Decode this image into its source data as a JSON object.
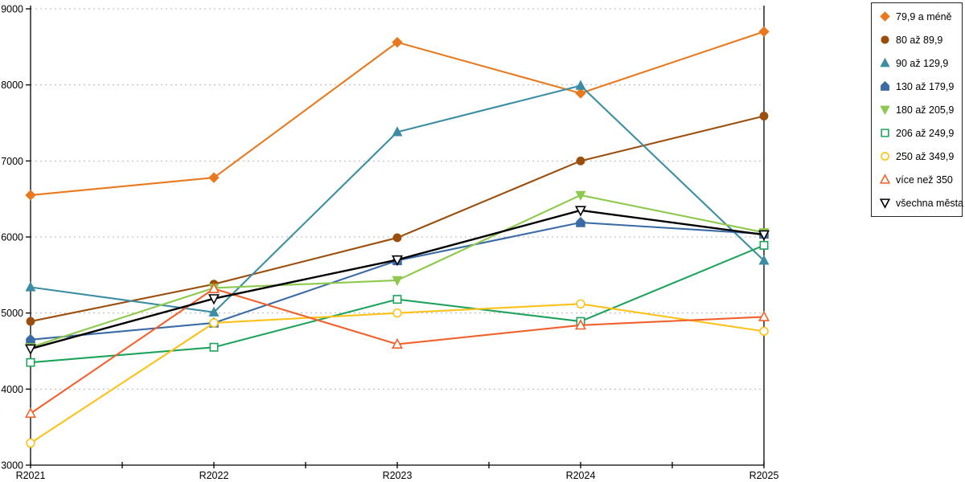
{
  "chart_data": {
    "type": "line",
    "title": "",
    "xlabel": "",
    "ylabel": "",
    "x_labels": [
      "R2021",
      "R2022",
      "R2023",
      "R2024",
      "R2025"
    ],
    "y_ticks": [
      3000,
      4000,
      5000,
      6000,
      7000,
      8000,
      9000
    ],
    "ylim": [
      3000,
      9000
    ],
    "grid": "horizontal-dotted",
    "grid_color": "#b5b5b5",
    "axis_color": "#000000",
    "legend_position": "right",
    "series": [
      {
        "name": "79,9 a méně",
        "color": "#E8791E",
        "marker": "diamond",
        "fill": true,
        "values": [
          6550,
          6780,
          8560,
          7890,
          8700
        ]
      },
      {
        "name": "80 až 89,9",
        "color": "#9A4F0F",
        "marker": "circle",
        "fill": true,
        "values": [
          4890,
          5380,
          5990,
          7000,
          7590
        ]
      },
      {
        "name": "90 až 129,9",
        "color": "#3C8DA3",
        "marker": "triangle-up",
        "fill": true,
        "values": [
          5340,
          5010,
          7380,
          7990,
          5690
        ]
      },
      {
        "name": "130 až 179,9",
        "color": "#3B6BA5",
        "marker": "pentagon",
        "fill": true,
        "values": [
          4650,
          4870,
          5690,
          6190,
          6040
        ]
      },
      {
        "name": "180 až 205,9",
        "color": "#8DC94C",
        "marker": "triangle-down",
        "fill": true,
        "values": [
          4550,
          5330,
          5430,
          6550,
          6060
        ]
      },
      {
        "name": "206 až 249,9",
        "color": "#1FA35C",
        "marker": "square",
        "fill": false,
        "values": [
          4350,
          4550,
          5180,
          4890,
          5890
        ]
      },
      {
        "name": "250 až 349,9",
        "color": "#FDC21A",
        "marker": "circle",
        "fill": false,
        "values": [
          3290,
          4870,
          5000,
          5120,
          4760
        ]
      },
      {
        "name": "více než 350",
        "color": "#F0612C",
        "marker": "triangle-up",
        "fill": false,
        "values": [
          3680,
          5320,
          4590,
          4840,
          4950
        ]
      },
      {
        "name": "všechna města",
        "color": "#000000",
        "marker": "triangle-down",
        "fill": false,
        "values": [
          4530,
          5190,
          5700,
          6350,
          6030
        ]
      }
    ]
  }
}
